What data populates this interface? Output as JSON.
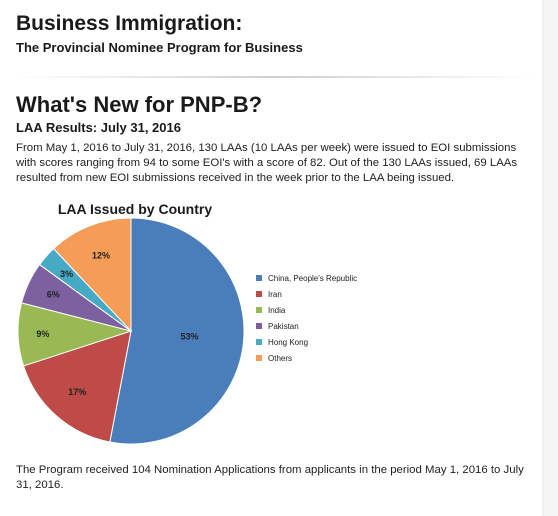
{
  "header": {
    "title": "Business Immigration:",
    "subtitle": "The Provincial Nominee Program for Business"
  },
  "section": {
    "title": "What's New for PNP-B?",
    "subtitle": "LAA Results: July 31, 2016",
    "paragraph": "From May 1, 2016 to July 31, 2016, 130 LAAs (10 LAAs per week) were issued to EOI submissions with scores ranging from 94 to some EOI's with a score of 82.  Out of the 130 LAAs issued, 69 LAAs resulted from new EOI submissions received in the week prior to the LAA being issued."
  },
  "chart_data": {
    "type": "pie",
    "title": "LAA Issued by Country",
    "categories": [
      "China, People's Republic",
      "Iran",
      "India",
      "Pakistan",
      "Hong Kong",
      "Others"
    ],
    "values": [
      53,
      17,
      9,
      6,
      3,
      12
    ],
    "value_labels": [
      "53%",
      "17%",
      "9%",
      "6%",
      "3%",
      "12%"
    ],
    "colors": [
      "#4a7ebb",
      "#be4b48",
      "#98b954",
      "#7d60a0",
      "#46aac5",
      "#f59d56"
    ],
    "legend_position": "right"
  },
  "footer": {
    "text": "The Program received 104 Nomination Applications from applicants in the period May 1, 2016 to July 31, 2016."
  }
}
